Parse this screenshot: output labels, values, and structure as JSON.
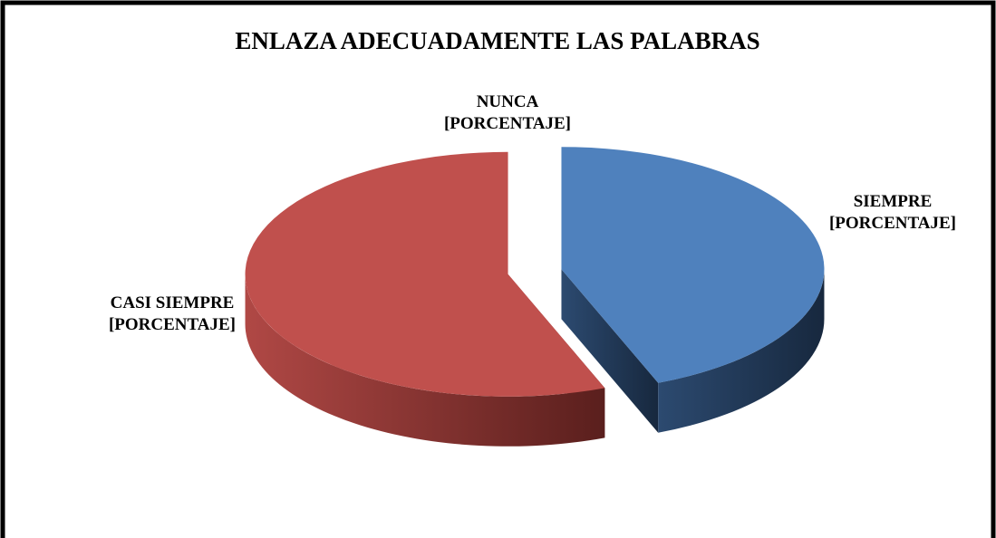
{
  "chart_data": {
    "type": "pie",
    "title": "ENLAZA ADECUADAMENTE LAS PALABRAS",
    "categories": [
      "SIEMPRE",
      "CASI SIEMPRE",
      "NUNCA"
    ],
    "values": [
      44,
      56,
      0
    ],
    "value_labels": [
      "[PORCENTAJE]",
      "[PORCENTAJE]",
      "[PORCENTAJE]"
    ],
    "colors": [
      "#4f81bd",
      "#c0504d",
      "#9bbb59"
    ]
  }
}
